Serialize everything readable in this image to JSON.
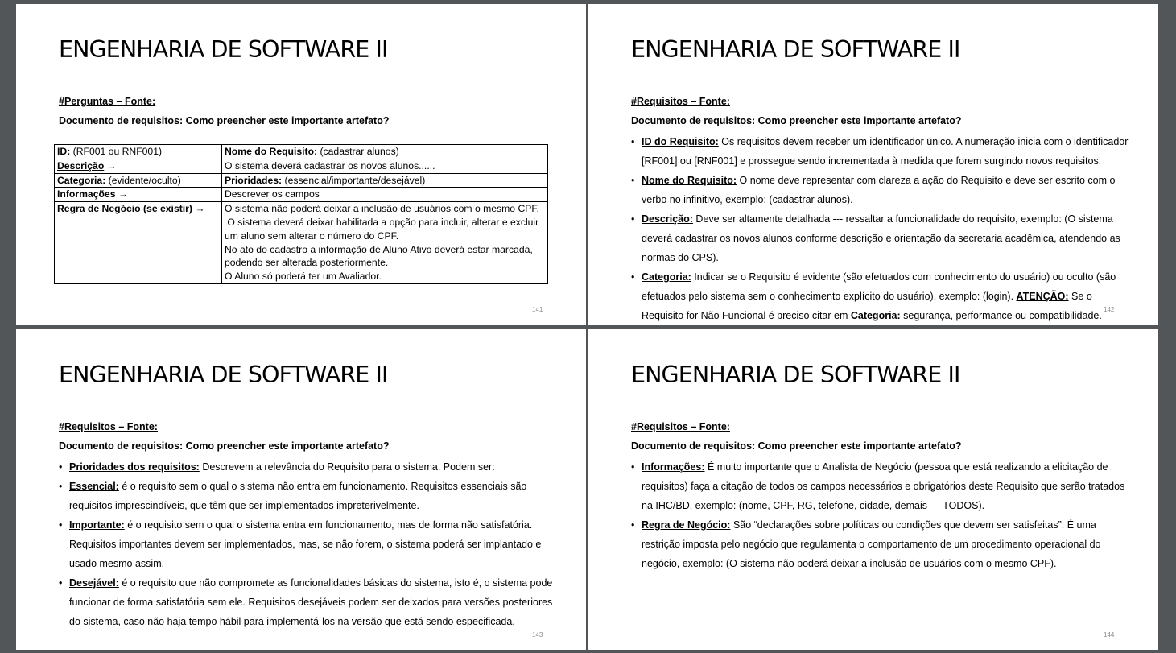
{
  "slides": [
    {
      "title": "ENGENHARIA DE SOFTWARE II",
      "section": "#Perguntas – Fonte:",
      "subtitle": "Documento de requisitos: Como preencher este importante artefato?",
      "page": "141",
      "table": {
        "id_label": "ID:",
        "id_value": " (RF001 ou RNF001)",
        "name_label": "Nome do Requisito:",
        "name_value": " (cadastrar alunos)",
        "desc_label": "Descrição",
        "desc_value": "O sistema deverá cadastrar os novos alunos......",
        "cat_label": "Categoria:",
        "cat_value": " (evidente/oculto)",
        "prio_label": "Prioridades:",
        "prio_value": " (essencial/importante/desejável)",
        "info_label": "Informações",
        "info_value": "Descrever os campos",
        "rule_label": "Regra de Negócio (se existir)",
        "rule_lines": [
          "O sistema não poderá deixar a inclusão de usuários com o mesmo CPF.",
          " O sistema deverá deixar habilitada a opção para incluir, alterar e excluir",
          "um aluno sem alterar o número do CPF.",
          "No ato do cadastro a informação de Aluno Ativo deverá estar marcada,",
          "podendo ser alterada posteriormente.",
          "O Aluno só poderá ter um Avaliador."
        ],
        "arrow": "→"
      }
    },
    {
      "title": "ENGENHARIA DE SOFTWARE II",
      "section": "#Requisitos – Fonte:",
      "subtitle": "Documento de requisitos: Como preencher este importante artefato?",
      "page": "142",
      "bullets": [
        {
          "term": "ID do Requisito:",
          "text": " Os requisitos devem receber um identificador único. A numeração inicia com o identificador [RF001] ou [RNF001] e prossegue sendo incrementada à medida que forem surgindo novos requisitos."
        },
        {
          "term": "Nome do Requisito:",
          "text": " O nome deve representar com clareza a ação do Requisito e deve ser escrito com o verbo no infinitivo, exemplo: (cadastrar alunos)."
        },
        {
          "term": "Descrição:",
          "text": " Deve ser altamente detalhada --- ressaltar a funcionalidade do requisito, exemplo: (O sistema deverá cadastrar os novos alunos conforme descrição e orientação da secretaria acadêmica, atendendo as normas do CPS)."
        },
        {
          "term": "Categoria:",
          "text": " Indicar se o Requisito é evidente (são efetuados com conhecimento do usuário) ou oculto (são efetuados pelo sistema sem o conhecimento explícito do usuário), exemplo: (login). ",
          "term2": "ATENÇÃO:",
          "text2": " Se o Requisito for Não Funcional é preciso citar em ",
          "term3": "Categoria:",
          "text3": " segurança, performance ou compatibilidade."
        }
      ]
    },
    {
      "title": "ENGENHARIA DE SOFTWARE II",
      "section": "#Requisitos – Fonte:",
      "subtitle": "Documento de requisitos: Como preencher este importante artefato?",
      "page": "143",
      "bullets": [
        {
          "term": "Prioridades dos requisitos:",
          "text": " Descrevem a relevância do Requisito para o sistema. Podem ser:"
        },
        {
          "term": "Essencial:",
          "text": " é o requisito sem o qual o sistema não entra em funcionamento. Requisitos essenciais são requisitos imprescindíveis, que têm que ser implementados impreterivelmente."
        },
        {
          "term": "Importante:",
          "text": " é o requisito sem o qual o sistema entra em funcionamento, mas de forma não satisfatória. Requisitos importantes devem ser implementados, mas, se não forem, o sistema poderá ser implantado e usado mesmo assim."
        },
        {
          "term": "Desejável:",
          "text": " é o requisito que não compromete as funcionalidades básicas do sistema, isto é, o sistema pode funcionar de forma satisfatória sem ele. Requisitos desejáveis podem ser deixados para versões posteriores do sistema, caso não haja tempo hábil para implementá-los na versão que está sendo especificada."
        }
      ]
    },
    {
      "title": "ENGENHARIA DE SOFTWARE II",
      "section": "#Requisitos – Fonte:",
      "subtitle": "Documento de requisitos: Como preencher este importante artefato?",
      "page": "144",
      "bullets": [
        {
          "term": "Informações:",
          "text": " É muito importante que o Analista de Negócio (pessoa que está realizando a elicitação de requisitos) faça a citação de todos os campos necessários e obrigatórios deste Requisito que serão tratados na IHC/BD, exemplo: (nome, CPF, RG, telefone, cidade, demais --- TODOS)."
        },
        {
          "term": "Regra de Negócio:",
          "text": " São “declarações sobre políticas ou condições que devem ser satisfeitas”. É uma restrição imposta pelo negócio que regulamenta o comportamento de um procedimento operacional do negócio, exemplo: (O sistema não poderá deixar a inclusão de usuários com o mesmo CPF)."
        }
      ]
    }
  ],
  "bullet_glyph": "•",
  "colors": {
    "viewer_bg": "#525659",
    "page_bg": "#ffffff",
    "page_number": "#8a8a8a"
  }
}
